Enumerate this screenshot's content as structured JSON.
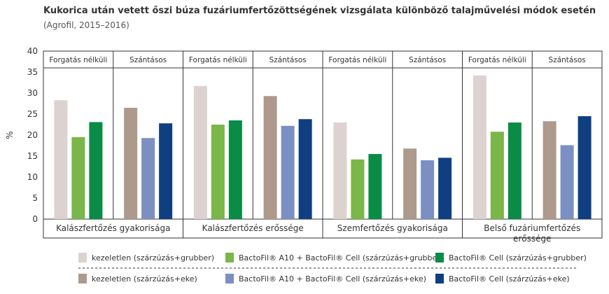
{
  "title": "Kukorica után vetett őszi búza fuzáriumfertőzöttségének vizsgálata különböző talajművelési módok esetén",
  "subtitle": "(Agrofil, 2015–2016)",
  "chart_data": {
    "type": "bar",
    "ylabel": "%",
    "ylim": [
      0,
      40
    ],
    "yticks": [
      0,
      5,
      10,
      15,
      20,
      25,
      30,
      35,
      40
    ],
    "groups": [
      {
        "label": "Kalászfertőzés gyakorisága",
        "subgroups": [
          {
            "label": "Forgatás nélküli",
            "values": [
              28.3,
              19.5,
              23.1
            ]
          },
          {
            "label": "Szántásos",
            "values": [
              26.5,
              19.3,
              22.8
            ]
          }
        ]
      },
      {
        "label": "Kalászfertőzés erőssége",
        "subgroups": [
          {
            "label": "Forgatás nélküli",
            "values": [
              31.7,
              22.5,
              23.5
            ]
          },
          {
            "label": "Szántásos",
            "values": [
              29.3,
              22.2,
              23.8
            ]
          }
        ]
      },
      {
        "label": "Szemfertőzés gyakorisága",
        "subgroups": [
          {
            "label": "Forgatás nélküli",
            "values": [
              23.0,
              14.2,
              15.5
            ]
          },
          {
            "label": "Szántásos",
            "values": [
              16.8,
              14.0,
              14.6
            ]
          }
        ]
      },
      {
        "label": "Belső fuzáriumfertőzés erőssége",
        "label_lines": [
          "Belső fuzáriumfertőzés",
          "erőssége"
        ],
        "subgroups": [
          {
            "label": "Forgatás nélküli",
            "values": [
              34.2,
              20.8,
              23.0
            ]
          },
          {
            "label": "Szántásos",
            "values": [
              23.3,
              17.6,
              24.5
            ]
          }
        ]
      }
    ],
    "series_colors": {
      "Forgatás nélküli": [
        "#dcd3d0",
        "#7ab648",
        "#0a8c46"
      ],
      "Szántásos": [
        "#ad9a8c",
        "#7b8fc3",
        "#0f3f80"
      ]
    },
    "legend": {
      "placement": "bottom",
      "items": [
        {
          "name": "kezeletlen (szárzúzás+grubber)",
          "color": "#dcd3d0"
        },
        {
          "name": "BactoFil® A10 + BactoFil® Cell (szárzúzás+grubber)",
          "color": "#7ab648"
        },
        {
          "name": "BactoFil® Cell (szárzúzás+grubber)",
          "color": "#0a8c46"
        },
        {
          "name": "kezeletlen (szárzúzás+eke)",
          "color": "#ad9a8c"
        },
        {
          "name": "BactoFil® A10 + BactoFil® Cell (szárzúzás+eke)",
          "color": "#7b8fc3"
        },
        {
          "name": "BactoFil® Cell (szárzúzás+eke)",
          "color": "#0f3f80"
        }
      ]
    },
    "grid": false
  }
}
